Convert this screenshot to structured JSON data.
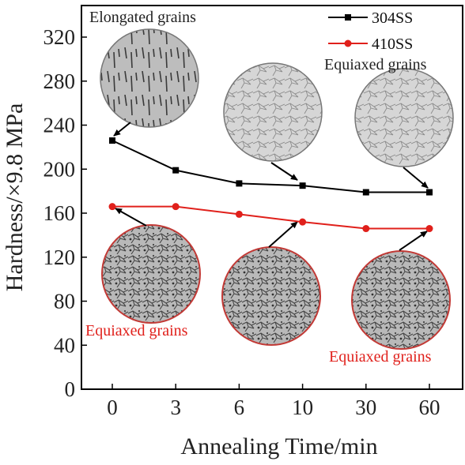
{
  "chart_data": {
    "type": "line",
    "xlabel": "Annealing Time/min",
    "ylabel": "Hardness/×9.8 MPa",
    "categories": [
      "0",
      "3",
      "6",
      "10",
      "30",
      "60"
    ],
    "ylim": [
      0,
      340
    ],
    "yticks": [
      0,
      40,
      80,
      120,
      160,
      200,
      240,
      280,
      320
    ],
    "grid": false,
    "legend_position": "top-right",
    "series": [
      {
        "name": "304SS",
        "color": "#000000",
        "marker": "square",
        "values": [
          226,
          199,
          187,
          185,
          179,
          179
        ]
      },
      {
        "name": "410SS",
        "color": "#e0201b",
        "marker": "circle",
        "values": [
          166,
          166,
          159,
          152,
          146,
          146
        ]
      }
    ],
    "annotations": [
      {
        "text": "Elongated grains",
        "color": "#222222"
      },
      {
        "text": "Equiaxed grains",
        "color": "#222222"
      },
      {
        "text": "Equiaxed grains",
        "color": "#e0201b"
      },
      {
        "text": "Equiaxed grains",
        "color": "#e0201b"
      }
    ]
  }
}
